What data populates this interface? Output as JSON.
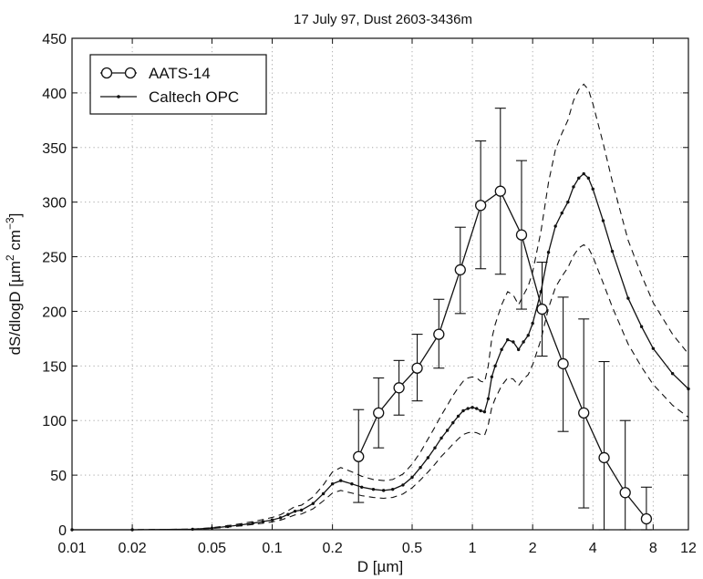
{
  "chart_data": {
    "type": "line",
    "title": "17 July 97, Dust 2603-3436m",
    "xlabel": "D [µm]",
    "ylabel": "dS/dlogD [µm² cm⁻³]",
    "ylabel_parts": {
      "pre": "dS/dlogD [µm",
      "sup1": "2",
      "mid": " cm",
      "sup2": "−3",
      "post": "]"
    },
    "xscale": "log",
    "xlim": [
      0.01,
      12
    ],
    "ylim": [
      0,
      450
    ],
    "grid": true,
    "legend_position": "top-left",
    "x_ticks": [
      {
        "v": 0.01,
        "label": "0.01"
      },
      {
        "v": 0.02,
        "label": "0.02"
      },
      {
        "v": 0.05,
        "label": "0.05"
      },
      {
        "v": 0.1,
        "label": "0.1"
      },
      {
        "v": 0.2,
        "label": "0.2"
      },
      {
        "v": 0.5,
        "label": "0.5"
      },
      {
        "v": 1,
        "label": "1"
      },
      {
        "v": 2,
        "label": "2"
      },
      {
        "v": 4,
        "label": "4"
      },
      {
        "v": 8,
        "label": "8"
      },
      {
        "v": 12,
        "label": "12"
      }
    ],
    "y_ticks": [
      0,
      50,
      100,
      150,
      200,
      250,
      300,
      350,
      400,
      450
    ],
    "series": [
      {
        "name": "AATS-14",
        "style": "circles-line",
        "points": [
          {
            "x": 0.27,
            "y": 67,
            "lo": 25,
            "hi": 110
          },
          {
            "x": 0.34,
            "y": 107,
            "lo": 75,
            "hi": 139
          },
          {
            "x": 0.43,
            "y": 130,
            "lo": 105,
            "hi": 155
          },
          {
            "x": 0.53,
            "y": 148,
            "lo": 118,
            "hi": 179
          },
          {
            "x": 0.68,
            "y": 179,
            "lo": 148,
            "hi": 211
          },
          {
            "x": 0.87,
            "y": 238,
            "lo": 198,
            "hi": 277
          },
          {
            "x": 1.1,
            "y": 297,
            "lo": 239,
            "hi": 356
          },
          {
            "x": 1.38,
            "y": 310,
            "lo": 234,
            "hi": 386
          },
          {
            "x": 1.76,
            "y": 270,
            "lo": 202,
            "hi": 338
          },
          {
            "x": 2.23,
            "y": 202,
            "lo": 159,
            "hi": 245
          },
          {
            "x": 2.84,
            "y": 152,
            "lo": 90,
            "hi": 213
          },
          {
            "x": 3.6,
            "y": 107,
            "lo": 20,
            "hi": 193
          },
          {
            "x": 4.55,
            "y": 66,
            "lo": 0,
            "hi": 154
          },
          {
            "x": 5.8,
            "y": 34,
            "lo": 0,
            "hi": 100
          },
          {
            "x": 7.4,
            "y": 10,
            "lo": 0,
            "hi": 39
          }
        ]
      },
      {
        "name": "Caltech OPC",
        "style": "dots-line",
        "x": [
          0.01,
          0.02,
          0.04,
          0.05,
          0.06,
          0.07,
          0.08,
          0.09,
          0.1,
          0.11,
          0.12,
          0.13,
          0.14,
          0.16,
          0.18,
          0.2,
          0.22,
          0.25,
          0.28,
          0.32,
          0.36,
          0.4,
          0.45,
          0.5,
          0.55,
          0.6,
          0.65,
          0.7,
          0.75,
          0.8,
          0.85,
          0.9,
          0.95,
          1.0,
          1.05,
          1.1,
          1.15,
          1.2,
          1.25,
          1.3,
          1.4,
          1.5,
          1.6,
          1.7,
          1.8,
          1.9,
          2.0,
          2.2,
          2.4,
          2.6,
          2.8,
          3.0,
          3.2,
          3.4,
          3.6,
          3.8,
          4.0,
          4.5,
          5.0,
          6.0,
          7.0,
          8.0,
          10.0,
          12.0
        ],
        "y": [
          0,
          0,
          0.5,
          1.5,
          3,
          4.5,
          6,
          7.5,
          9,
          11,
          14,
          17,
          18,
          24,
          33,
          42,
          45,
          42,
          39,
          37,
          36,
          37,
          41,
          48,
          57,
          66,
          75,
          84,
          91,
          98,
          104,
          109,
          111,
          112,
          111,
          109,
          108,
          120,
          140,
          150,
          165,
          174,
          172,
          165,
          172,
          178,
          189,
          218,
          254,
          278,
          290,
          300,
          314,
          322,
          326,
          322,
          312,
          283,
          255,
          212,
          186,
          166,
          143,
          129
        ]
      },
      {
        "name": "",
        "style": "dashed",
        "x": [
          0.01,
          0.02,
          0.04,
          0.05,
          0.06,
          0.07,
          0.08,
          0.09,
          0.1,
          0.11,
          0.12,
          0.13,
          0.14,
          0.16,
          0.18,
          0.2,
          0.22,
          0.25,
          0.28,
          0.32,
          0.36,
          0.4,
          0.45,
          0.5,
          0.55,
          0.6,
          0.65,
          0.7,
          0.75,
          0.8,
          0.85,
          0.9,
          0.95,
          1.0,
          1.05,
          1.1,
          1.15,
          1.2,
          1.25,
          1.3,
          1.4,
          1.5,
          1.6,
          1.7,
          1.8,
          1.9,
          2.0,
          2.2,
          2.4,
          2.6,
          2.8,
          3.0,
          3.2,
          3.4,
          3.6,
          3.8,
          4.0,
          4.5,
          5.0,
          6.0,
          7.0,
          8.0,
          10.0,
          12.0
        ],
        "y": [
          0,
          0,
          0.6,
          1.9,
          3.8,
          5.6,
          7.5,
          9.4,
          11.3,
          13.8,
          17.5,
          21.3,
          22.5,
          30,
          41,
          53,
          57,
          53,
          49,
          46,
          45,
          46,
          51,
          60,
          71,
          83,
          94,
          105,
          114,
          123,
          130,
          136,
          139,
          140,
          139,
          136,
          135,
          150,
          175,
          188,
          206,
          218,
          215,
          206,
          215,
          223,
          236,
          273,
          318,
          348,
          363,
          375,
          393,
          403,
          408,
          403,
          390,
          354,
          319,
          265,
          233,
          208,
          179,
          161
        ]
      },
      {
        "name": "",
        "style": "dashed",
        "x": [
          0.01,
          0.02,
          0.04,
          0.05,
          0.06,
          0.07,
          0.08,
          0.09,
          0.1,
          0.11,
          0.12,
          0.13,
          0.14,
          0.16,
          0.18,
          0.2,
          0.22,
          0.25,
          0.28,
          0.32,
          0.36,
          0.4,
          0.45,
          0.5,
          0.55,
          0.6,
          0.65,
          0.7,
          0.75,
          0.8,
          0.85,
          0.9,
          0.95,
          1.0,
          1.05,
          1.1,
          1.15,
          1.2,
          1.25,
          1.3,
          1.4,
          1.5,
          1.6,
          1.7,
          1.8,
          1.9,
          2.0,
          2.2,
          2.4,
          2.6,
          2.8,
          3.0,
          3.2,
          3.4,
          3.6,
          3.8,
          4.0,
          4.5,
          5.0,
          6.0,
          7.0,
          8.0,
          10.0,
          12.0
        ],
        "y": [
          0,
          0,
          0.4,
          1.2,
          2.4,
          3.6,
          4.8,
          6.0,
          7.2,
          8.8,
          11.2,
          13.6,
          14.4,
          19.2,
          26.4,
          33.6,
          36,
          33.6,
          31.2,
          29.6,
          28.8,
          29.6,
          32.8,
          38.4,
          45.6,
          52.8,
          60,
          67.2,
          72.8,
          78.4,
          83.2,
          87.2,
          88.8,
          89.6,
          88.8,
          87.2,
          86.4,
          96,
          112,
          120,
          132,
          139,
          138,
          132,
          138,
          142,
          151,
          174,
          203,
          222,
          232,
          240,
          251,
          258,
          261,
          258,
          250,
          226,
          204,
          170,
          149,
          133,
          114,
          103
        ]
      }
    ]
  }
}
